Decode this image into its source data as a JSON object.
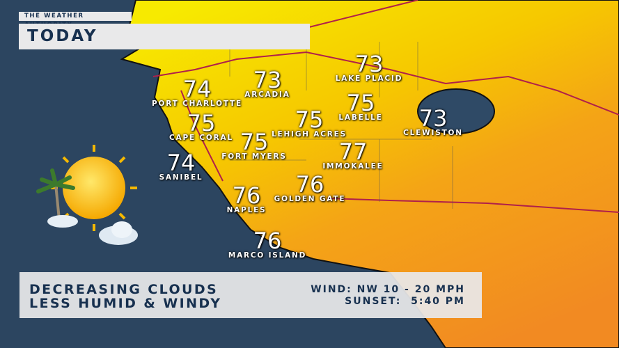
{
  "header": {
    "brand": "THE WEATHER AUTHORITY",
    "title": "TODAY"
  },
  "cities": [
    {
      "name": "PORT CHARLOTTE",
      "temp": "74"
    },
    {
      "name": "ARCADIA",
      "temp": "73"
    },
    {
      "name": "LAKE PLACID",
      "temp": "73"
    },
    {
      "name": "LABELLE",
      "temp": "75"
    },
    {
      "name": "CLEWISTON",
      "temp": "73"
    },
    {
      "name": "LEHIGH ACRES",
      "temp": "75"
    },
    {
      "name": "CAPE CORAL",
      "temp": "75"
    },
    {
      "name": "FORT MYERS",
      "temp": "75"
    },
    {
      "name": "IMMOKALEE",
      "temp": "77"
    },
    {
      "name": "SANIBEL",
      "temp": "74"
    },
    {
      "name": "GOLDEN GATE",
      "temp": "76"
    },
    {
      "name": "NAPLES",
      "temp": "76"
    },
    {
      "name": "MARCO ISLAND",
      "temp": "76"
    }
  ],
  "summary": {
    "line1": "DECREASING CLOUDS",
    "line2": "LESS HUMID & WINDY",
    "wind": "WIND: NW 10 - 20 MPH",
    "sunset": "SUNSET:  5:40 PM"
  },
  "icon": "sun-partly-cloudy-windy-icon",
  "colors": {
    "ocean": "#2c4560",
    "land_cool": "#f5e600",
    "land_warm": "#f39420",
    "roads": "#b0204a",
    "text_dark": "#17304f"
  }
}
